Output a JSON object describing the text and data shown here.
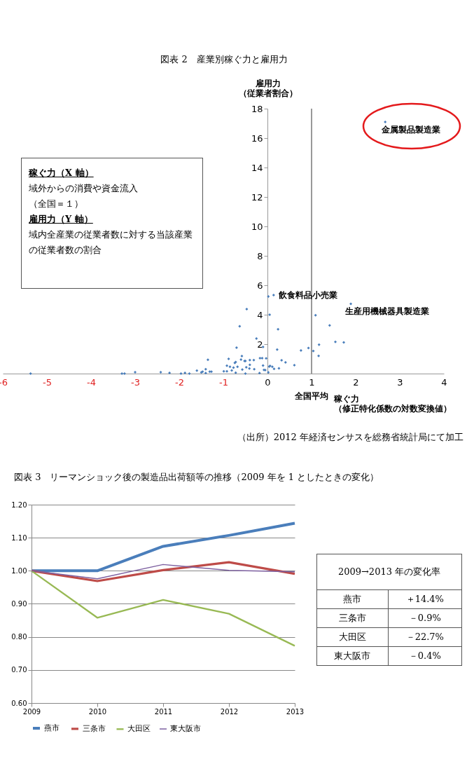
{
  "chart_data": [
    {
      "type": "scatter",
      "title": "図表 2　産業別稼ぐ力と雇用力",
      "xlabel": "稼ぐ力（修正特化係数の対数変換値）",
      "ylabel": "雇用力（従業者割合）",
      "color": "#4a7ebb",
      "marker": "diamond",
      "grid": false,
      "x": [
        -5.37,
        -3.3,
        -3.24,
        -3.0,
        -2.42,
        -2.22,
        -1.96,
        -1.87,
        -1.77,
        -1.6,
        -1.5,
        -1.47,
        -1.4,
        -1.4,
        -1.35,
        -1.31,
        -1.27,
        -0.99,
        -0.92,
        -0.92,
        -0.88,
        -0.85,
        -0.81,
        -0.77,
        -0.74,
        -0.72,
        -0.72,
        -0.7,
        -0.68,
        -0.63,
        -0.6,
        -0.58,
        -0.57,
        -0.52,
        -0.5,
        -0.5,
        -0.48,
        -0.47,
        -0.41,
        -0.4,
        -0.4,
        -0.31,
        -0.3,
        -0.25,
        -0.18,
        -0.17,
        -0.12,
        -0.1,
        -0.1,
        -0.08,
        -0.05,
        -0.03,
        0.02,
        0.02,
        0.04,
        0.05,
        0.06,
        0.11,
        0.14,
        0.15,
        0.22,
        0.24,
        0.26,
        0.32,
        0.41,
        0.61,
        0.76,
        0.93,
        1.04,
        1.09,
        1.16,
        1.17,
        1.41,
        1.54,
        1.73,
        1.89,
        2.67
      ],
      "values": [
        0,
        0,
        0,
        0.1,
        0.1,
        0.05,
        0,
        0.05,
        0,
        0.2,
        0.08,
        0.13,
        0.03,
        0.3,
        0.94,
        0.13,
        0.13,
        0.16,
        0.16,
        0.54,
        1.0,
        0.46,
        0.22,
        0.41,
        0.73,
        0.78,
        0.06,
        1.76,
        0.46,
        3.22,
        0.95,
        1.19,
        0.27,
        0.86,
        0.86,
        0,
        0.43,
        4.38,
        0.35,
        0.6,
        0.92,
        0.92,
        0.3,
        2.38,
        0.03,
        1.05,
        1.05,
        1.81,
        0.55,
        0.25,
        0.24,
        1.03,
        5.24,
        0.08,
        0.48,
        4.0,
        0.52,
        0.46,
        5.33,
        0.32,
        1.63,
        3.01,
        0.36,
        0.9,
        0.76,
        0.57,
        1.57,
        1.74,
        1.54,
        3.97,
        1.2,
        1.97,
        3.27,
        2.16,
        2.12,
        4.74,
        17.1
      ],
      "xlim": [
        -6,
        4
      ],
      "xticks": [
        -6,
        -5,
        -4,
        -3,
        -2,
        -1,
        0,
        1,
        2,
        3,
        4
      ],
      "ylim": [
        0,
        18
      ],
      "yticks": [
        2,
        4,
        6,
        8,
        10,
        12,
        14,
        16,
        18
      ],
      "ref_lines": [
        {
          "axis": "x",
          "value": 1,
          "label": "全国平均"
        }
      ],
      "annotations": [
        "稼ぐ力（X 軸）",
        "域外からの消費や資金流入",
        "（全国＝１）",
        "雇用力（Y 軸）",
        "域内全産業の従業者数に対する当該産業の従業者数の割合",
        {
          "text": "飲食料品小売業",
          "x": 0.14,
          "y": 5.33
        },
        {
          "text": "生産用機械器具製造業",
          "x": 1.89,
          "y": 4.74
        },
        {
          "text": "金属製品製造業",
          "x": 2.67,
          "y": 17.1
        },
        "（出所）2012 年経済センサスを総務省統計局にて加工"
      ]
    },
    {
      "type": "line",
      "title": "図表 3　リーマンショック後の製造品出荷額等の推移（2009 年を 1 としたときの変化）",
      "categories": [
        "2009",
        "2010",
        "2011",
        "2012",
        "2013"
      ],
      "series": [
        {
          "name": "燕市",
          "color": "#4a7ebb",
          "values": [
            1.0,
            1.0,
            1.074,
            1.107,
            1.144
          ]
        },
        {
          "name": "三条市",
          "color": "#be4b48",
          "values": [
            1.0,
            0.969,
            1.002,
            1.026,
            0.991
          ]
        },
        {
          "name": "大田区",
          "color": "#98b954",
          "values": [
            1.0,
            0.858,
            0.912,
            0.87,
            0.773
          ]
        },
        {
          "name": "東大阪市",
          "color": "#7d60a0",
          "values": [
            1.0,
            0.976,
            1.019,
            1.001,
            0.997
          ]
        }
      ],
      "ylim": [
        0.6,
        1.2
      ],
      "yticks": [
        {
          "value": 0.6,
          "label": "0.60"
        },
        {
          "value": 0.7,
          "label": "0.70"
        },
        {
          "value": 0.8,
          "label": "0.80"
        },
        {
          "value": 0.9,
          "label": "0.90"
        },
        {
          "value": 1.0,
          "label": "1.00"
        },
        {
          "value": 1.1,
          "label": "1.10"
        },
        {
          "value": 1.2,
          "label": "1.20"
        }
      ],
      "grid": "y",
      "legend": "bottom",
      "marker": "none"
    },
    {
      "type": "other",
      "title": "2009→2013 年の変化率",
      "categories": [
        "燕市",
        "三条市",
        "大田区",
        "東大阪市"
      ],
      "value_labels": [
        "＋14.4%",
        "－0.9%",
        "－22.7%",
        "－0.4%"
      ]
    }
  ]
}
